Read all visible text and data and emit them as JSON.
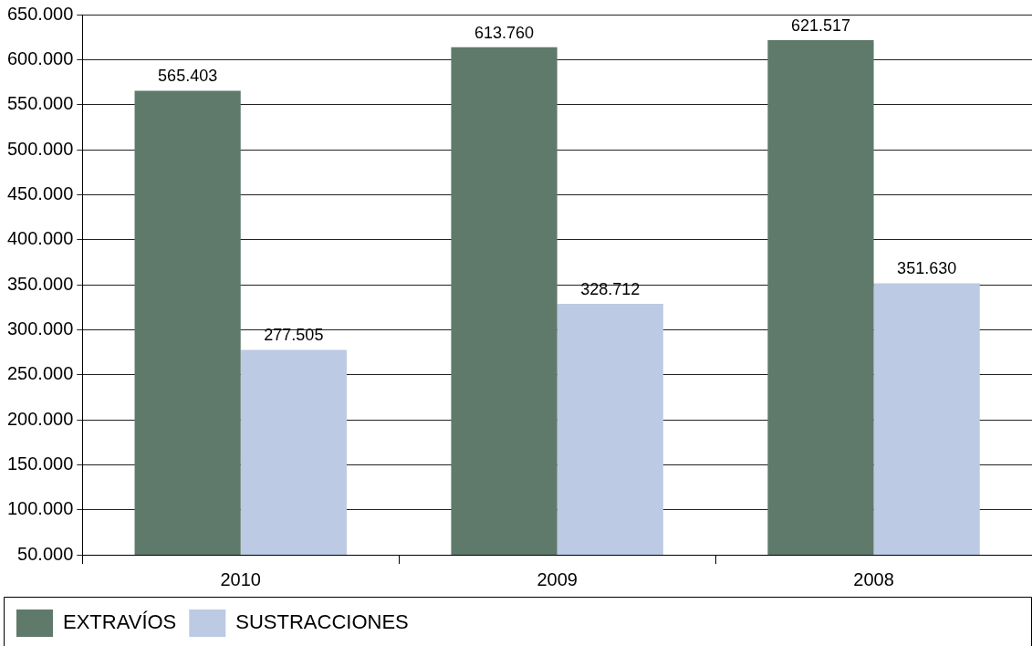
{
  "chart_data": {
    "type": "bar",
    "categories": [
      "2010",
      "2009",
      "2008"
    ],
    "series": [
      {
        "name": "EXTRAVÍOS",
        "color": "#5f7a6b",
        "values": [
          565403,
          613760,
          621517
        ],
        "value_labels": [
          "565.403",
          "613.760",
          "621.517"
        ]
      },
      {
        "name": "SUSTRACCIONES",
        "color": "#bccae3",
        "values": [
          277505,
          328712,
          351630
        ],
        "value_labels": [
          "277.505",
          "328.712",
          "351.630"
        ]
      }
    ],
    "ylim": [
      50000,
      650000
    ],
    "yticks": [
      {
        "value": 50000,
        "label": "50.000"
      },
      {
        "value": 100000,
        "label": "100.000"
      },
      {
        "value": 150000,
        "label": "150.000"
      },
      {
        "value": 200000,
        "label": "200.000"
      },
      {
        "value": 250000,
        "label": "250.000"
      },
      {
        "value": 300000,
        "label": "300.000"
      },
      {
        "value": 350000,
        "label": "350.000"
      },
      {
        "value": 400000,
        "label": "400.000"
      },
      {
        "value": 450000,
        "label": "450.000"
      },
      {
        "value": 500000,
        "label": "500.000"
      },
      {
        "value": 550000,
        "label": "550.000"
      },
      {
        "value": 600000,
        "label": "600.000"
      },
      {
        "value": 650000,
        "label": "650.000"
      }
    ],
    "grid": "y",
    "legend": "bottom"
  }
}
